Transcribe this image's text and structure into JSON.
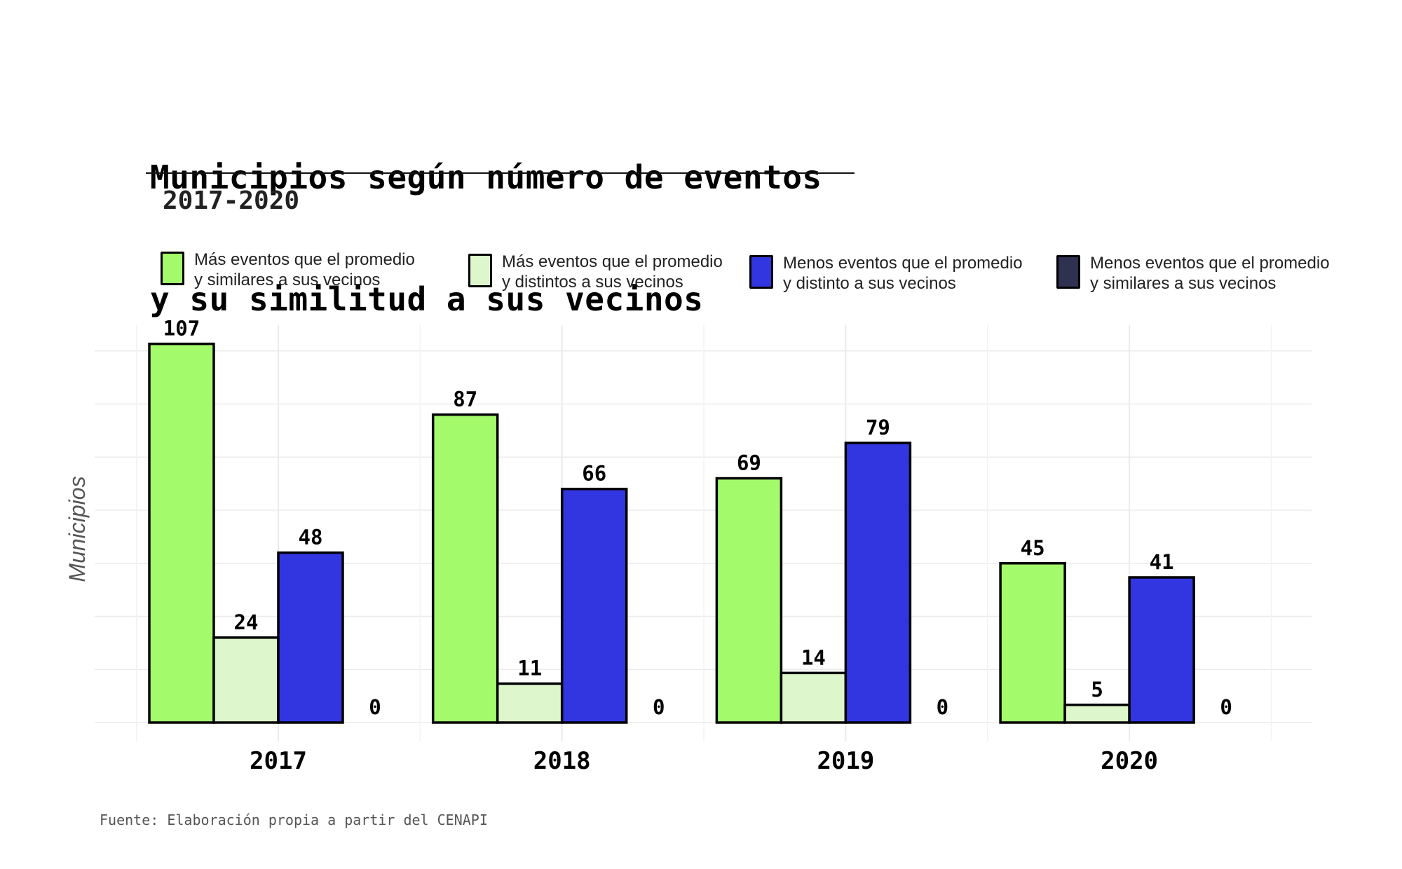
{
  "chart_data": {
    "type": "bar",
    "title_lines": [
      "Municipios según número de eventos",
      "y su similitud a sus vecinos"
    ],
    "subtitle": "2017-2020",
    "xlabel": "",
    "ylabel": "Municipios",
    "caption": "Fuente: Elaboración propia a partir del CENAPI",
    "categories": [
      "2017",
      "2018",
      "2019",
      "2020"
    ],
    "ylim": [
      0,
      112
    ],
    "grid": true,
    "y_gridlines": [
      15,
      30,
      45,
      60,
      75,
      90,
      105
    ],
    "y_tick_labels_shown": false,
    "legend_position": "top",
    "series": [
      {
        "name": "Más eventos que el promedio y similares a sus vecinos",
        "legend_lines": [
          "Más eventos que el promedio",
          "y similares a sus vecinos"
        ],
        "color": "#a3fb6b",
        "values": [
          107,
          87,
          69,
          45
        ]
      },
      {
        "name": "Más eventos que el promedio y distintos a sus vecinos",
        "legend_lines": [
          "Más eventos que el promedio",
          "y distintos a sus vecinos"
        ],
        "color": "#ddf6cb",
        "values": [
          24,
          11,
          14,
          5
        ]
      },
      {
        "name": "Menos eventos que el promedio y distinto a sus vecinos",
        "legend_lines": [
          "Menos eventos que el promedio",
          "y distinto a sus vecinos"
        ],
        "color": "#3236e0",
        "values": [
          48,
          66,
          79,
          41
        ]
      },
      {
        "name": "Menos eventos que el promedio y similares a sus vecinos",
        "legend_lines": [
          "Menos eventos que el promedio",
          "y similares a sus vecinos"
        ],
        "color": "#2e3150",
        "values": [
          0,
          0,
          0,
          0
        ]
      }
    ]
  }
}
